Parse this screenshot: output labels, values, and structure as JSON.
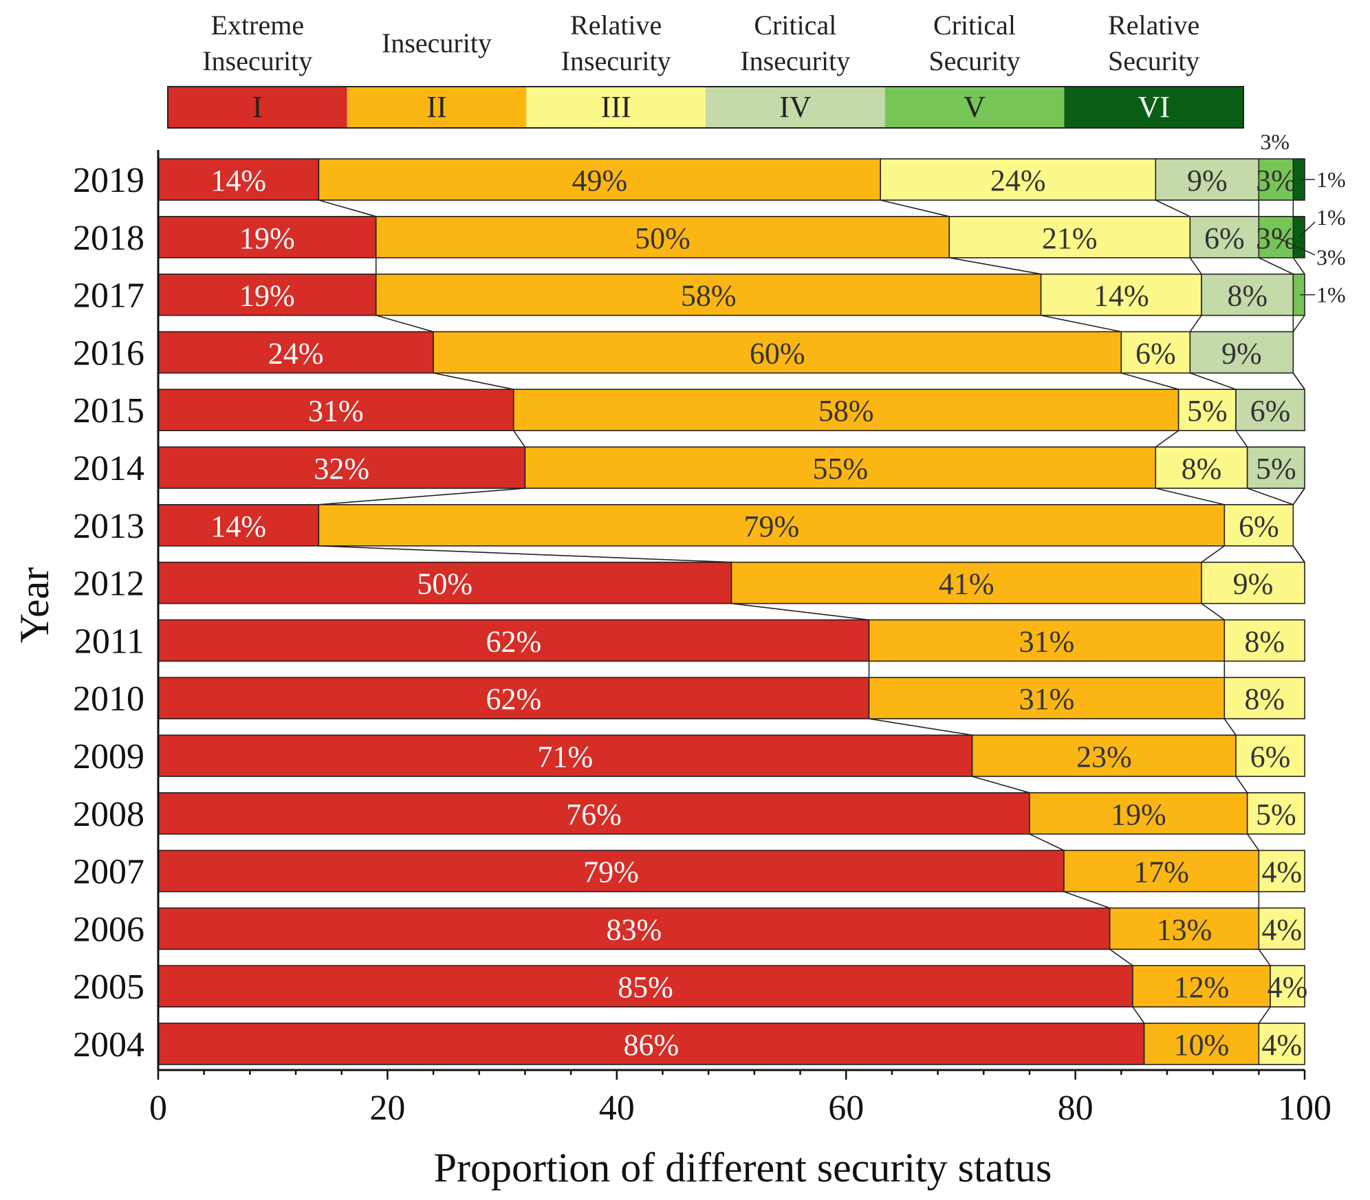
{
  "chart_data": {
    "type": "bar",
    "orientation": "horizontal",
    "stacked": true,
    "xlabel": "Proportion of different security status",
    "ylabel": "Year",
    "xlim": [
      0,
      100
    ],
    "xticks": [
      0,
      20,
      40,
      60,
      80,
      100
    ],
    "categories": [
      "2019",
      "2018",
      "2017",
      "2016",
      "2015",
      "2014",
      "2013",
      "2012",
      "2011",
      "2010",
      "2009",
      "2008",
      "2007",
      "2006",
      "2005",
      "2004"
    ],
    "legend": [
      {
        "code": "I",
        "name_lines": [
          "Extreme",
          "Insecurity"
        ],
        "color": "#d62d27"
      },
      {
        "code": "II",
        "name_lines": [
          "Insecurity"
        ],
        "color": "#fbb614"
      },
      {
        "code": "III",
        "name_lines": [
          "Relative",
          "Insecurity"
        ],
        "color": "#fdf88a"
      },
      {
        "code": "IV",
        "name_lines": [
          "Critical",
          "Insecurity"
        ],
        "color": "#c4daa8"
      },
      {
        "code": "V",
        "name_lines": [
          "Critical",
          "Security"
        ],
        "color": "#78c557"
      },
      {
        "code": "VI",
        "name_lines": [
          "Relative",
          "Security"
        ],
        "color": "#0a5e14"
      }
    ],
    "label_colors": [
      "#ffffff",
      "#333333",
      "#333333",
      "#333333",
      "#333333",
      "#333333"
    ],
    "series": [
      {
        "name": "Extreme Insecurity",
        "values": [
          14,
          19,
          19,
          24,
          31,
          32,
          14,
          50,
          62,
          62,
          71,
          76,
          79,
          83,
          85,
          86
        ]
      },
      {
        "name": "Insecurity",
        "values": [
          49,
          50,
          58,
          60,
          58,
          55,
          79,
          41,
          31,
          31,
          23,
          19,
          17,
          13,
          12,
          10
        ]
      },
      {
        "name": "Relative Insecurity",
        "values": [
          24,
          21,
          14,
          6,
          5,
          8,
          6,
          9,
          8,
          8,
          6,
          5,
          4,
          4,
          4,
          4
        ]
      },
      {
        "name": "Critical Insecurity",
        "values": [
          9,
          6,
          8,
          9,
          6,
          5,
          0,
          0,
          0,
          0,
          0,
          0,
          0,
          0,
          0,
          0
        ]
      },
      {
        "name": "Critical Security",
        "values": [
          3,
          3,
          1,
          0,
          0,
          0,
          0,
          0,
          0,
          0,
          0,
          0,
          0,
          0,
          0,
          0
        ]
      },
      {
        "name": "Relative Security",
        "values": [
          1,
          1,
          0,
          0,
          0,
          0,
          0,
          0,
          0,
          0,
          0,
          0,
          0,
          0,
          0,
          0
        ]
      }
    ],
    "annotations": [
      {
        "text": "3%",
        "year": "2019",
        "series": "Critical Security"
      },
      {
        "text": "1%",
        "year": "2019",
        "series": "Relative Security"
      },
      {
        "text": "1%",
        "year": "2018",
        "series": "Relative Security"
      },
      {
        "text": "3%",
        "year": "2018",
        "series": "Critical Security"
      },
      {
        "text": "1%",
        "year": "2017",
        "series": "Critical Security"
      }
    ]
  }
}
